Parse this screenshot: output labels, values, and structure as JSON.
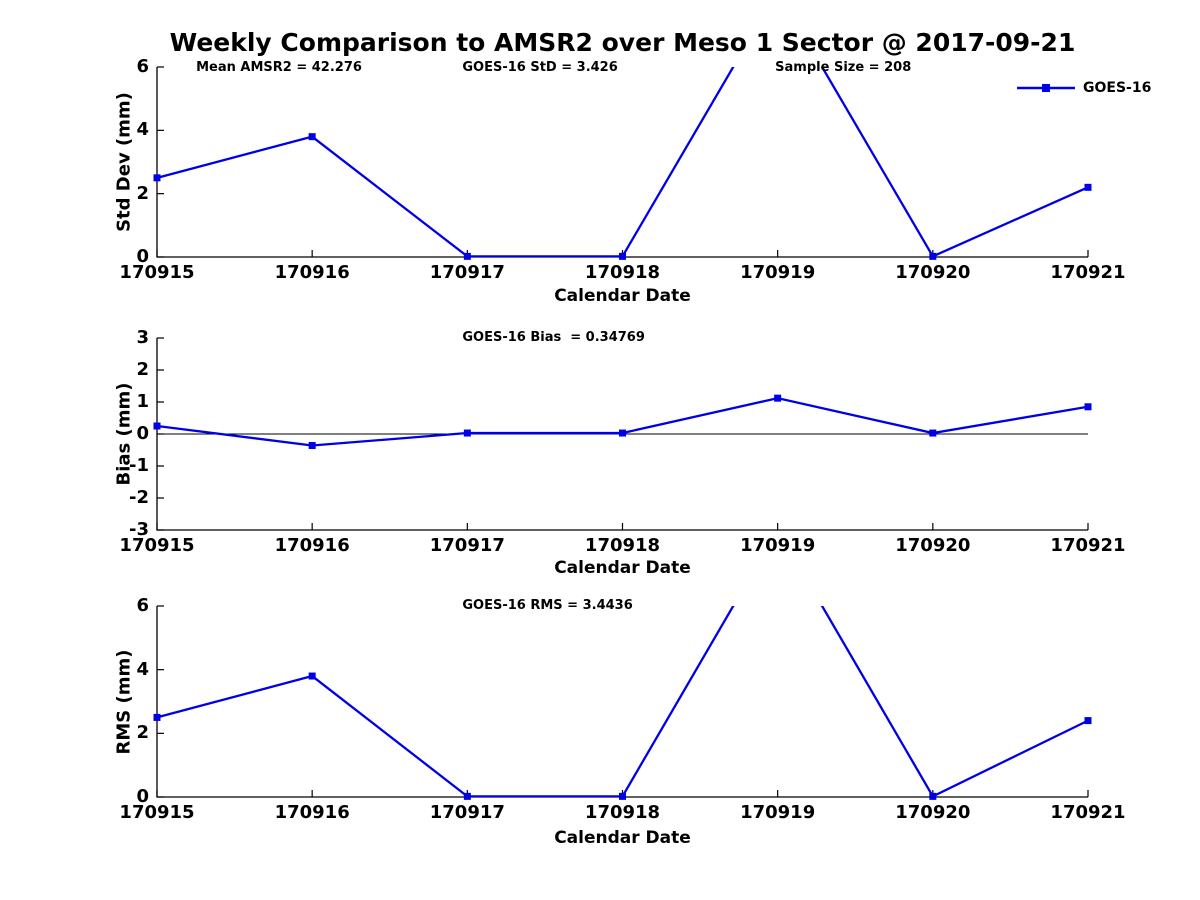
{
  "figure": {
    "title": "Weekly Comparison to AMSR2 over Meso 1 Sector @ 2017-09-21"
  },
  "legend": {
    "label": "GOES-16"
  },
  "style": {
    "line_color": "#0000e8",
    "axis_color": "#000000",
    "background": "#ffffff"
  },
  "chart_data": [
    {
      "type": "line",
      "ylabel": "Std Dev (mm)",
      "xlabel": "Calendar Date",
      "x": [
        170915,
        170916,
        170917,
        170918,
        170919,
        170920,
        170921
      ],
      "x_ticklabels": [
        "170915",
        "170916",
        "170917",
        "170918",
        "170919",
        "170920",
        "170921"
      ],
      "series": [
        {
          "name": "GOES-16",
          "values": [
            2.5,
            3.8,
            0.02,
            0.02,
            8.4,
            0.02,
            2.2
          ]
        }
      ],
      "ylim": [
        0,
        6
      ],
      "yticks": [
        0,
        2,
        4,
        6
      ],
      "grid": false,
      "zero_line": false,
      "legend_position": "top-right-inside",
      "annotations": [
        {
          "text": "Mean AMSR2 = 42.276",
          "xfrac": 0.042
        },
        {
          "text": "GOES-16 StD = 3.426",
          "xfrac": 0.328
        },
        {
          "text": "Sample Size = 208",
          "xfrac": 0.664
        }
      ]
    },
    {
      "type": "line",
      "ylabel": "Bias (mm)",
      "xlabel": "Calendar Date",
      "x": [
        170915,
        170916,
        170917,
        170918,
        170919,
        170920,
        170921
      ],
      "x_ticklabels": [
        "170915",
        "170916",
        "170917",
        "170918",
        "170919",
        "170920",
        "170921"
      ],
      "series": [
        {
          "name": "GOES-16",
          "values": [
            0.25,
            -0.36,
            0.03,
            0.03,
            1.12,
            0.03,
            0.85
          ]
        }
      ],
      "ylim": [
        -3,
        3
      ],
      "yticks": [
        -3,
        -2,
        -1,
        0,
        1,
        2,
        3
      ],
      "grid": false,
      "zero_line": true,
      "annotations": [
        {
          "text": "GOES-16 Bias  = 0.34769",
          "xfrac": 0.328
        }
      ]
    },
    {
      "type": "line",
      "ylabel": "RMS (mm)",
      "xlabel": "Calendar Date",
      "x": [
        170915,
        170916,
        170917,
        170918,
        170919,
        170920,
        170921
      ],
      "x_ticklabels": [
        "170915",
        "170916",
        "170917",
        "170918",
        "170919",
        "170920",
        "170921"
      ],
      "series": [
        {
          "name": "GOES-16",
          "values": [
            2.5,
            3.8,
            0.02,
            0.02,
            8.4,
            0.02,
            2.4
          ]
        }
      ],
      "ylim": [
        0,
        6
      ],
      "yticks": [
        0,
        2,
        4,
        6
      ],
      "grid": false,
      "zero_line": false,
      "annotations": [
        {
          "text": "GOES-16 RMS = 3.4436",
          "xfrac": 0.328
        }
      ]
    }
  ]
}
